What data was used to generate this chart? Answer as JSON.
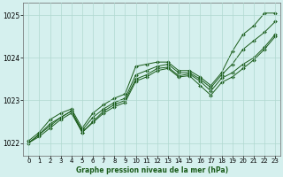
{
  "xlabel": "Graphe pression niveau de la mer (hPa)",
  "ylim": [
    1021.7,
    1025.3
  ],
  "xlim": [
    -0.5,
    23.5
  ],
  "yticks": [
    1022,
    1023,
    1024,
    1025
  ],
  "xticks": [
    0,
    1,
    2,
    3,
    4,
    5,
    6,
    7,
    8,
    9,
    10,
    11,
    12,
    13,
    14,
    15,
    16,
    17,
    18,
    19,
    20,
    21,
    22,
    23
  ],
  "bg_color": "#d5f0ee",
  "grid_color": "#b0d8d0",
  "line_color": "#1a5c1a",
  "series": [
    [
      1022.05,
      1022.25,
      1022.55,
      1022.7,
      1022.8,
      1022.35,
      1022.7,
      1022.9,
      1023.05,
      1023.15,
      1023.8,
      1023.85,
      1023.9,
      1023.9,
      1023.7,
      1023.7,
      1023.55,
      1023.35,
      1023.65,
      1024.15,
      1024.55,
      1024.75,
      1025.05,
      1025.05
    ],
    [
      1022.0,
      1022.2,
      1022.45,
      1022.6,
      1022.75,
      1022.3,
      1022.6,
      1022.8,
      1022.95,
      1023.05,
      1023.6,
      1023.7,
      1023.8,
      1023.85,
      1023.65,
      1023.65,
      1023.5,
      1023.3,
      1023.6,
      1023.85,
      1024.2,
      1024.4,
      1024.6,
      1024.85
    ],
    [
      1022.0,
      1022.2,
      1022.4,
      1022.6,
      1022.75,
      1022.25,
      1022.5,
      1022.75,
      1022.9,
      1023.0,
      1023.5,
      1023.6,
      1023.75,
      1023.78,
      1023.58,
      1023.62,
      1023.45,
      1023.22,
      1023.52,
      1023.65,
      1023.85,
      1024.0,
      1024.25,
      1024.55
    ],
    [
      1022.0,
      1022.15,
      1022.35,
      1022.55,
      1022.7,
      1022.25,
      1022.48,
      1022.7,
      1022.85,
      1022.95,
      1023.45,
      1023.55,
      1023.7,
      1023.75,
      1023.55,
      1023.58,
      1023.35,
      1023.12,
      1023.42,
      1023.55,
      1023.75,
      1023.95,
      1024.2,
      1024.5
    ]
  ]
}
